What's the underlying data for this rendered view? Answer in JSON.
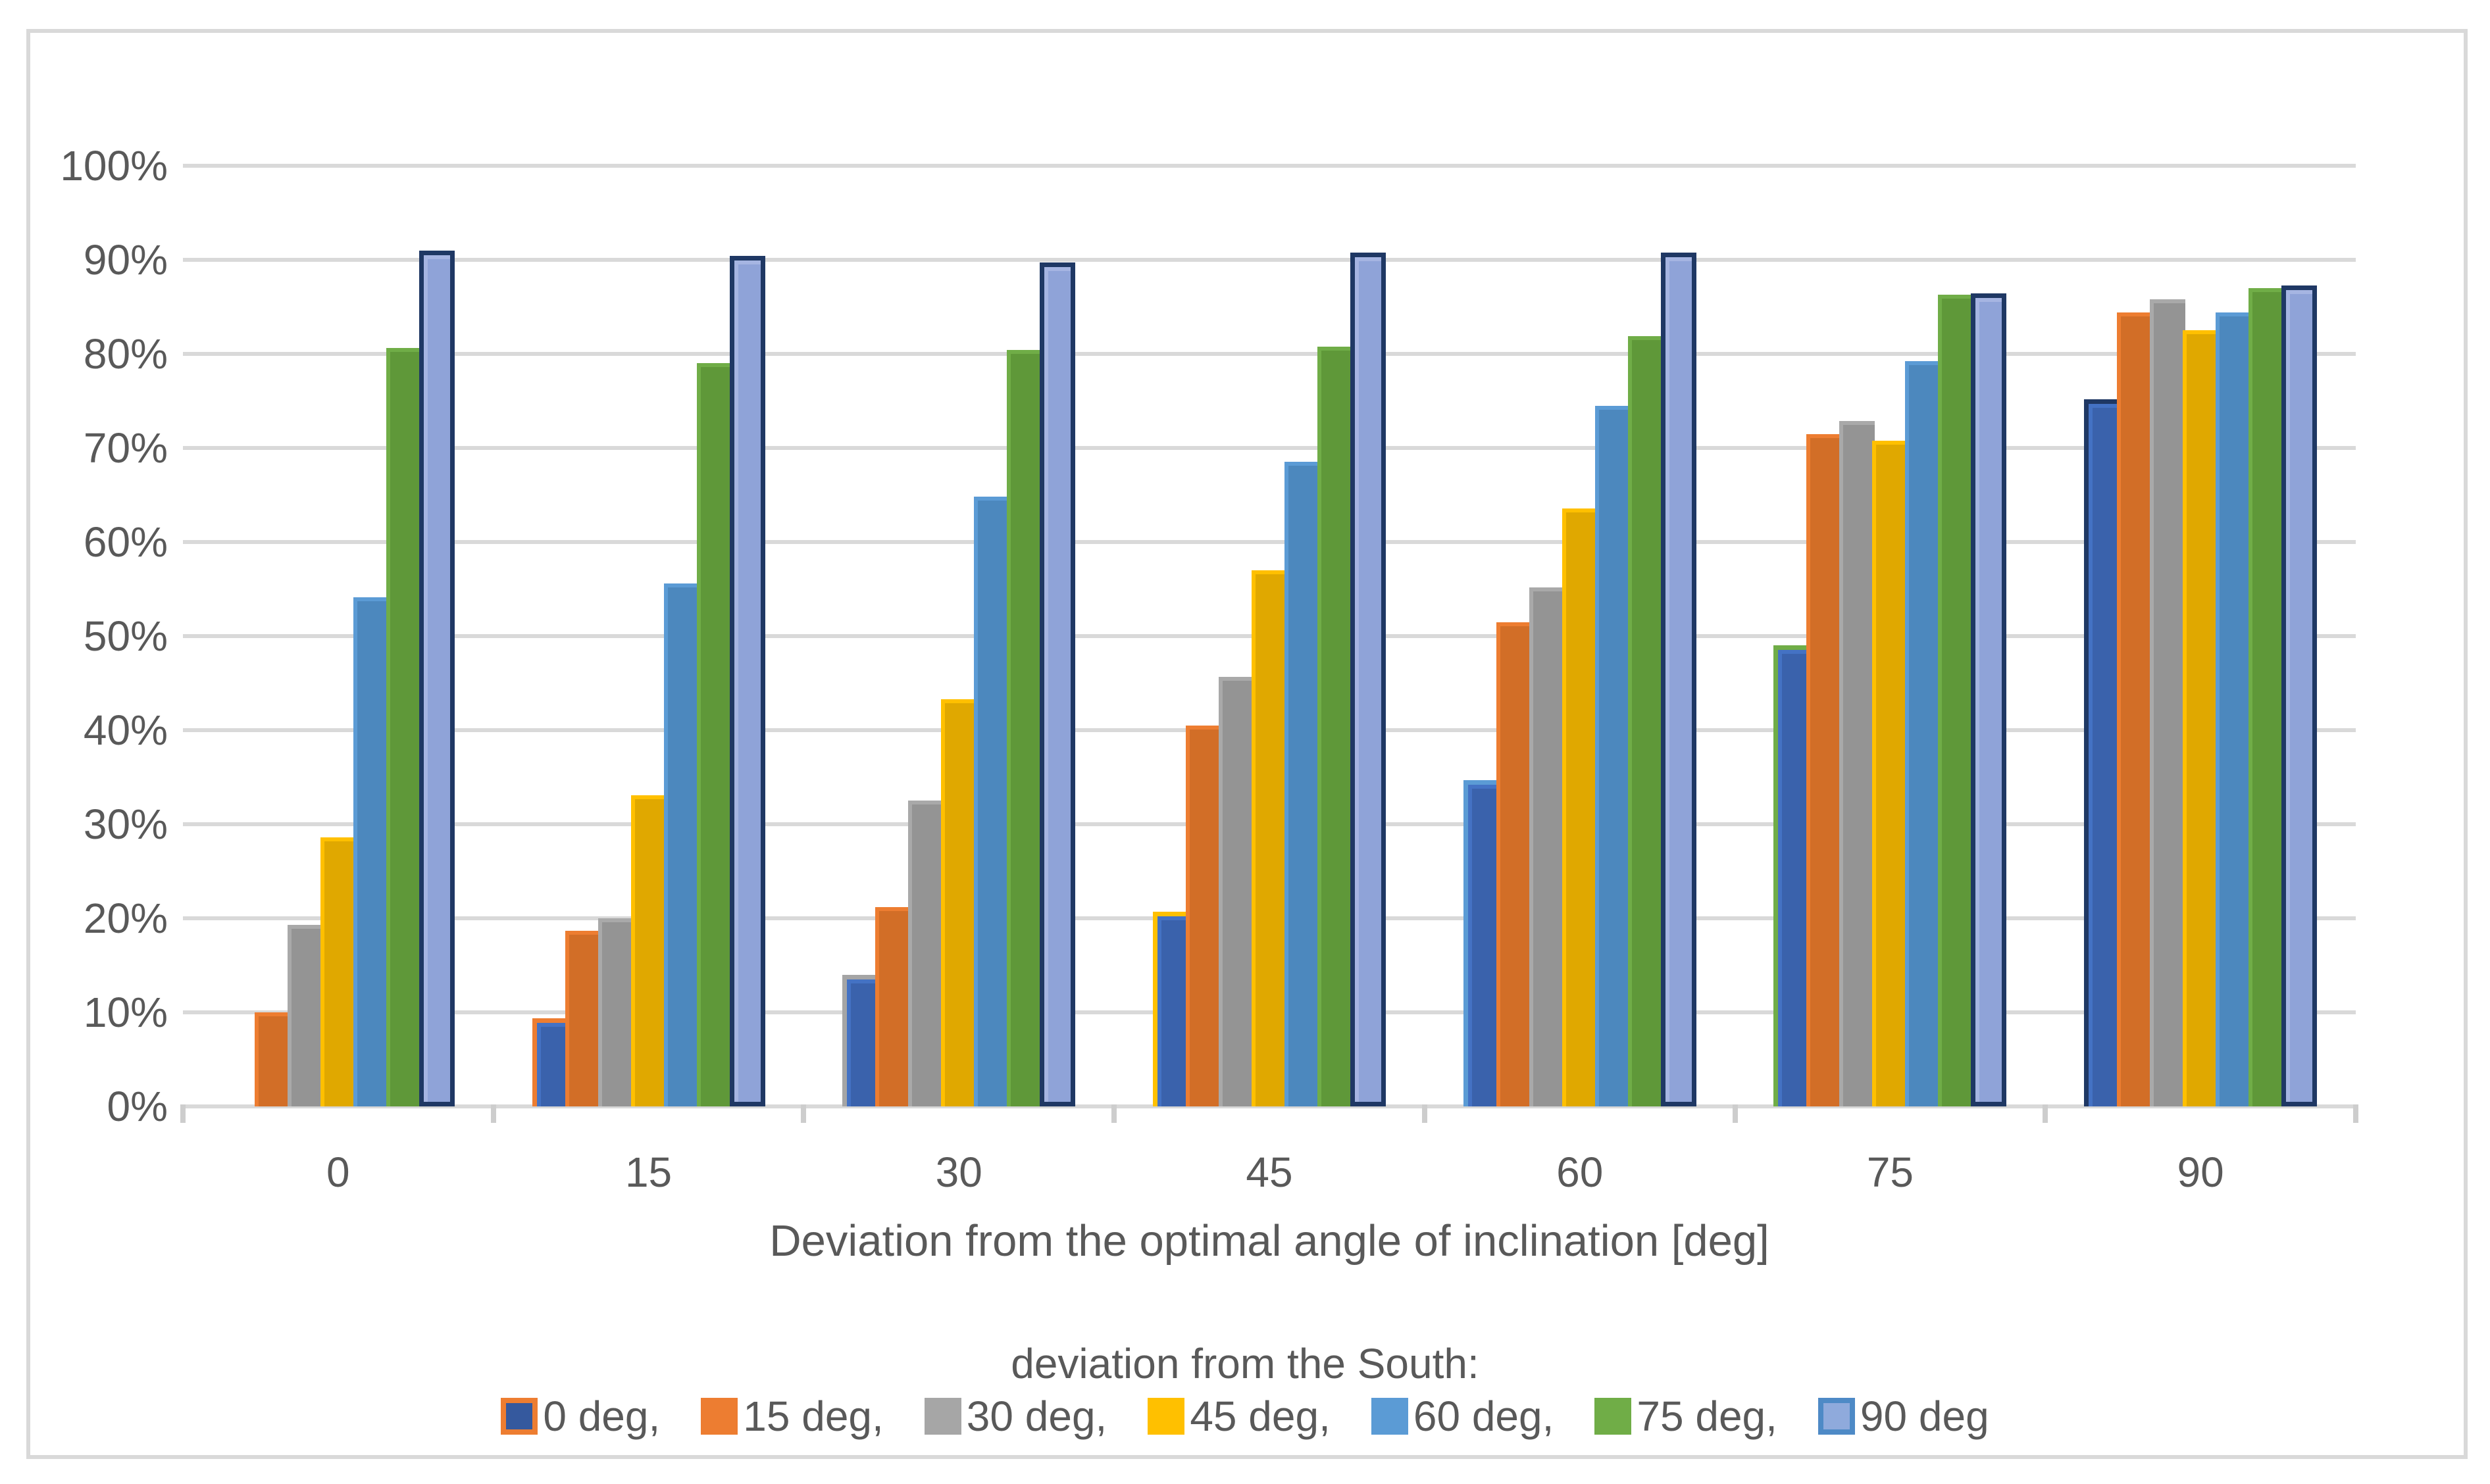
{
  "figure": {
    "border_color": "#D9D9D9",
    "background": "#FFFFFF",
    "text_color": "#595959",
    "gridline_color": "#D9D9D9",
    "tick_color": "#CDCDCD"
  },
  "chart_data": {
    "type": "bar",
    "title": "",
    "xlabel": "Deviation from the optimal angle of inclination [deg]",
    "ylabel": "",
    "legend_title": "deviation from the South:",
    "legend_position": "bottom",
    "grid": true,
    "ylim": [
      0,
      100
    ],
    "y_ticks": [
      "100%",
      "90%",
      "80%",
      "70%",
      "60%",
      "50%",
      "40%",
      "30%",
      "20%",
      "10%",
      "0%"
    ],
    "categories": [
      "0",
      "15",
      "30",
      "45",
      "60",
      "75",
      "90"
    ],
    "series": [
      {
        "name": "0 deg",
        "label": "0 deg,",
        "values": [
          0,
          9.4,
          14.0,
          20.7,
          34.7,
          49.0,
          75.2
        ],
        "fill": "#3A62AC",
        "rim": "#4472C4",
        "point_border_colors": [
          "",
          "#ED7D31",
          "#A5A5A5",
          "#FFC000",
          "#5B9BD5",
          "#70AD47",
          "#1F3864"
        ],
        "legend_fill": "#35599E",
        "legend_border": "#ED7D31"
      },
      {
        "name": "15 deg",
        "label": "15 deg,",
        "values": [
          10.0,
          18.7,
          21.2,
          40.5,
          51.5,
          71.5,
          84.4
        ],
        "fill": "#D26E27",
        "rim": "#ED7D31",
        "legend_fill": "#ED7D31",
        "legend_border": ""
      },
      {
        "name": "30 deg",
        "label": "30 deg,",
        "values": [
          19.3,
          20.0,
          32.5,
          45.7,
          55.2,
          72.9,
          85.8
        ],
        "fill": "#949494",
        "rim": "#A9A9A9",
        "legend_fill": "#A6A6A6",
        "legend_border": ""
      },
      {
        "name": "45 deg",
        "label": "45 deg,",
        "values": [
          28.6,
          33.1,
          43.3,
          57.0,
          63.6,
          70.8,
          82.5
        ],
        "fill": "#E0A800",
        "rim": "#FFC000",
        "legend_fill": "#FFC000",
        "legend_border": ""
      },
      {
        "name": "60 deg",
        "label": "60 deg,",
        "values": [
          54.1,
          55.6,
          64.8,
          68.5,
          74.5,
          79.2,
          84.4
        ],
        "fill": "#4C88BE",
        "rim": "#5B9BD5",
        "legend_fill": "#5B9BD5",
        "legend_border": ""
      },
      {
        "name": "75 deg",
        "label": "75 deg,",
        "values": [
          80.6,
          79.0,
          80.4,
          80.8,
          81.9,
          86.3,
          87.0
        ],
        "fill": "#5F9839",
        "rim": "#70AD47",
        "legend_fill": "#70AD47",
        "legend_border": ""
      },
      {
        "name": "90 deg",
        "label": "90 deg",
        "values": [
          91.0,
          90.4,
          89.7,
          90.8,
          90.8,
          86.4,
          87.3
        ],
        "fill": "#8FA3D8",
        "rim": "#A6B5E2",
        "bar_border": "#1F3864",
        "legend_fill": "#8FAADC",
        "legend_border": "#4E8AC6"
      }
    ]
  }
}
